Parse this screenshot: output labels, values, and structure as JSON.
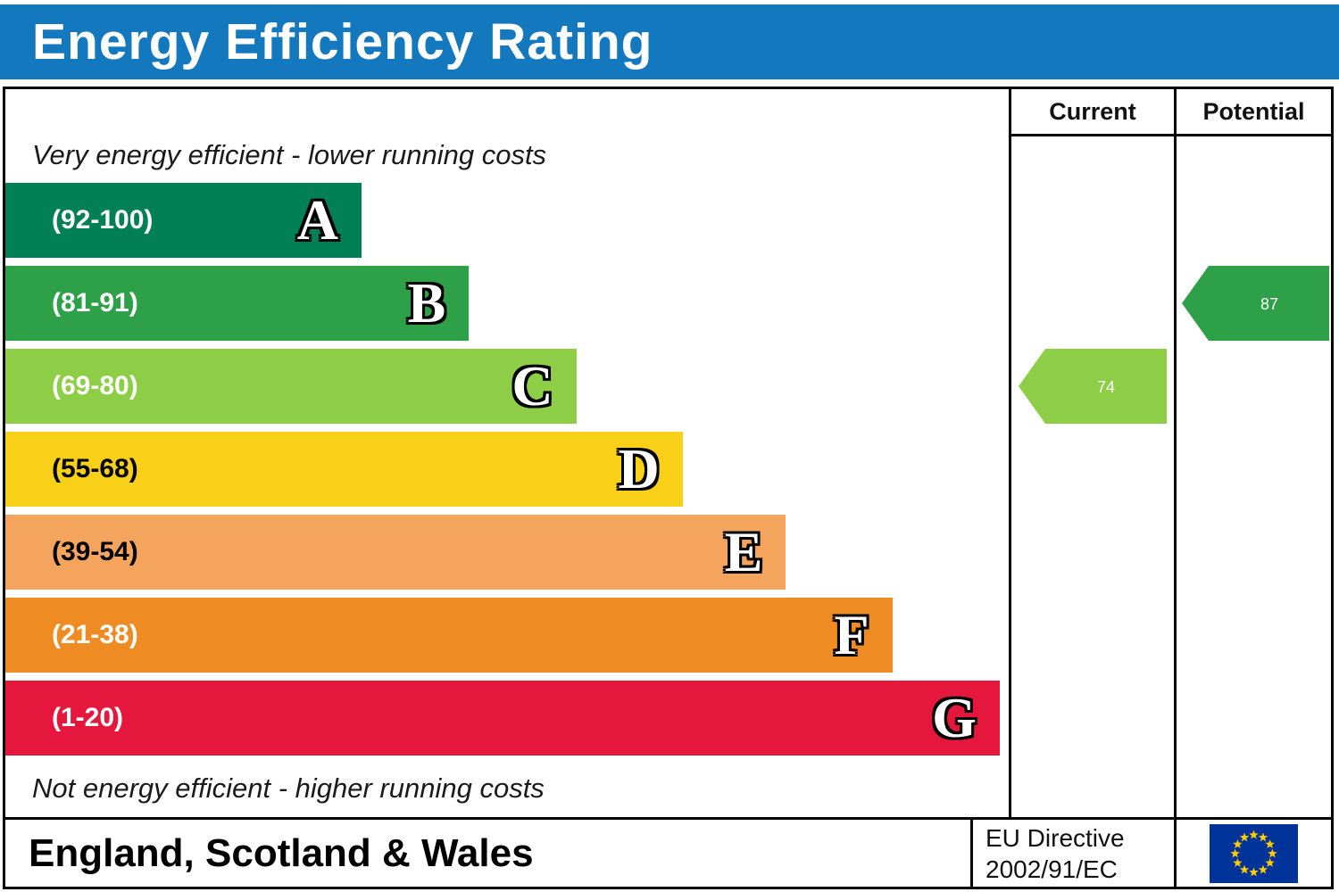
{
  "header": {
    "title": "Energy Efficiency Rating",
    "bg_color": "#1478bf"
  },
  "columns": {
    "current": "Current",
    "potential": "Potential"
  },
  "notes": {
    "top": "Very energy efficient - lower running costs",
    "bottom": "Not energy efficient - higher running costs"
  },
  "footer": {
    "region": "England, Scotland & Wales",
    "directive": [
      "EU Directive",
      "2002/91/EC"
    ],
    "flag": {
      "name": "eu-flag",
      "field_color": "#003399",
      "star_color": "#ffcc00"
    }
  },
  "chart_data": {
    "type": "bar",
    "title": "Energy Efficiency Rating",
    "orientation": "horizontal",
    "bands": [
      {
        "letter": "A",
        "range": "(92-100)",
        "color": "#008054",
        "range_text_color": "#ffffff",
        "width_pct": 35.5
      },
      {
        "letter": "B",
        "range": "(81-91)",
        "color": "#2da048",
        "range_text_color": "#ffffff",
        "width_pct": 46.2
      },
      {
        "letter": "C",
        "range": "(69-80)",
        "color": "#8dce46",
        "range_text_color": "#ffffff",
        "width_pct": 56.9
      },
      {
        "letter": "D",
        "range": "(55-68)",
        "color": "#f7d017",
        "range_text_color": "#000000",
        "width_pct": 67.5
      },
      {
        "letter": "E",
        "range": "(39-54)",
        "color": "#f5a45e",
        "range_text_color": "#000000",
        "width_pct": 77.8
      },
      {
        "letter": "F",
        "range": "(21-38)",
        "color": "#ee8b23",
        "range_text_color": "#ffffff",
        "width_pct": 88.4
      },
      {
        "letter": "G",
        "range": "(1-20)",
        "color": "#e5173d",
        "range_text_color": "#ffffff",
        "width_pct": 99.1
      }
    ],
    "current": {
      "value": 74,
      "band": "C",
      "color": "#8dce46"
    },
    "potential": {
      "value": 87,
      "band": "B",
      "color": "#2da048"
    }
  }
}
